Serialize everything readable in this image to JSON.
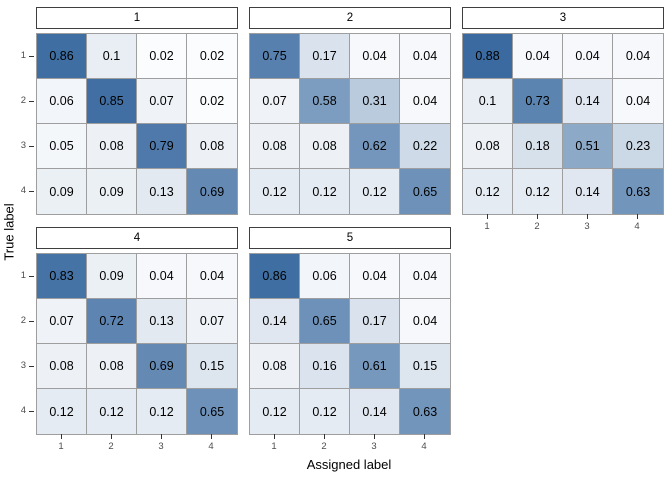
{
  "chart_data": {
    "type": "heatmap",
    "title": "",
    "xlabel": "Assigned label",
    "ylabel": "True label",
    "x_ticks": [
      "1",
      "2",
      "3",
      "4"
    ],
    "y_ticks": [
      "1",
      "2",
      "3",
      "4"
    ],
    "legend": "none",
    "grid": "off",
    "facet_layout": {
      "rows": 2,
      "cols": 3
    },
    "colorscale": {
      "low": "#FFFFFF",
      "high": "#1F5693"
    },
    "value_range": [
      0,
      1
    ],
    "facets": [
      {
        "label": "1",
        "values": [
          [
            0.86,
            0.1,
            0.02,
            0.02
          ],
          [
            0.06,
            0.85,
            0.07,
            0.02
          ],
          [
            0.05,
            0.08,
            0.79,
            0.08
          ],
          [
            0.09,
            0.09,
            0.13,
            0.69
          ]
        ]
      },
      {
        "label": "2",
        "values": [
          [
            0.75,
            0.17,
            0.04,
            0.04
          ],
          [
            0.07,
            0.58,
            0.31,
            0.04
          ],
          [
            0.08,
            0.08,
            0.62,
            0.22
          ],
          [
            0.12,
            0.12,
            0.12,
            0.65
          ]
        ]
      },
      {
        "label": "3",
        "values": [
          [
            0.88,
            0.04,
            0.04,
            0.04
          ],
          [
            0.1,
            0.73,
            0.14,
            0.04
          ],
          [
            0.08,
            0.18,
            0.51,
            0.23
          ],
          [
            0.12,
            0.12,
            0.14,
            0.63
          ]
        ]
      },
      {
        "label": "4",
        "values": [
          [
            0.83,
            0.09,
            0.04,
            0.04
          ],
          [
            0.07,
            0.72,
            0.13,
            0.07
          ],
          [
            0.08,
            0.08,
            0.69,
            0.15
          ],
          [
            0.12,
            0.12,
            0.12,
            0.65
          ]
        ]
      },
      {
        "label": "5",
        "values": [
          [
            0.86,
            0.06,
            0.04,
            0.04
          ],
          [
            0.14,
            0.65,
            0.17,
            0.04
          ],
          [
            0.08,
            0.16,
            0.61,
            0.15
          ],
          [
            0.12,
            0.12,
            0.14,
            0.63
          ]
        ]
      }
    ]
  }
}
